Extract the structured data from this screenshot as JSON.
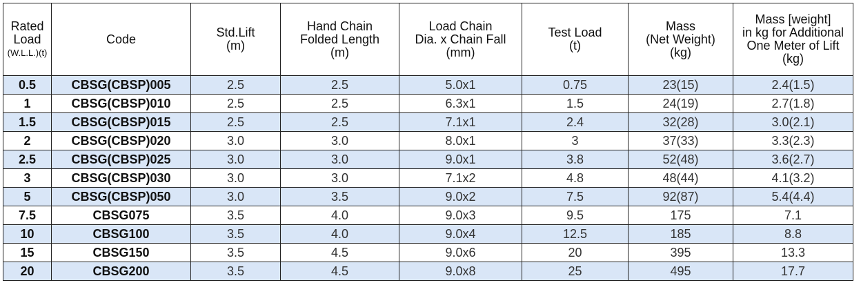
{
  "table": {
    "headers": [
      {
        "lines": [
          "Rated",
          "Load"
        ],
        "small": "(W.L.L.)(t)"
      },
      {
        "lines": [
          "Code"
        ]
      },
      {
        "lines": [
          "Std.Lift",
          "(m)"
        ]
      },
      {
        "lines": [
          "Hand Chain",
          "Folded Length",
          "(m)"
        ]
      },
      {
        "lines": [
          "Load Chain",
          "Dia. x Chain Fall",
          "(mm)"
        ]
      },
      {
        "lines": [
          "Test Load",
          "(t)"
        ]
      },
      {
        "lines": [
          "Mass",
          "(Net Weight)",
          "(kg)"
        ]
      },
      {
        "lines": [
          "Mass [weight]",
          "in kg for Additional",
          "One Meter of Lift",
          "(kg)"
        ]
      }
    ],
    "rows": [
      [
        "0.5",
        "CBSG(CBSP)005",
        "2.5",
        "2.5",
        "5.0x1",
        "0.75",
        "23(15)",
        "2.4(1.5)"
      ],
      [
        "1",
        "CBSG(CBSP)010",
        "2.5",
        "2.5",
        "6.3x1",
        "1.5",
        "24(19)",
        "2.7(1.8)"
      ],
      [
        "1.5",
        "CBSG(CBSP)015",
        "2.5",
        "2.5",
        "7.1x1",
        "2.4",
        "32(28)",
        "3.0(2.1)"
      ],
      [
        "2",
        "CBSG(CBSP)020",
        "3.0",
        "3.0",
        "8.0x1",
        "3",
        "37(33)",
        "3.3(2.3)"
      ],
      [
        "2.5",
        "CBSG(CBSP)025",
        "3.0",
        "3.0",
        "9.0x1",
        "3.8",
        "52(48)",
        "3.6(2.7)"
      ],
      [
        "3",
        "CBSG(CBSP)030",
        "3.0",
        "3.0",
        "7.1x2",
        "4.8",
        "48(44)",
        "4.1(3.2)"
      ],
      [
        "5",
        "CBSG(CBSP)050",
        "3.0",
        "3.5",
        "9.0x2",
        "7.5",
        "92(87)",
        "5.4(4.4)"
      ],
      [
        "7.5",
        "CBSG075",
        "3.5",
        "4.0",
        "9.0x3",
        "9.5",
        "175",
        "7.1"
      ],
      [
        "10",
        "CBSG100",
        "3.5",
        "4.0",
        "9.0x4",
        "12.5",
        "185",
        "8.8"
      ],
      [
        "15",
        "CBSG150",
        "3.5",
        "4.5",
        "9.0x6",
        "20",
        "395",
        "13.3"
      ],
      [
        "20",
        "CBSG200",
        "3.5",
        "4.5",
        "9.0x8",
        "25",
        "495",
        "17.7"
      ]
    ],
    "row_shading": [
      "shaded",
      "plain",
      "shaded",
      "plain",
      "shaded",
      "plain",
      "shaded",
      "plain",
      "shaded",
      "plain",
      "shaded"
    ],
    "colors": {
      "shaded_row": "#d9e6f7",
      "border": "#222222"
    }
  }
}
